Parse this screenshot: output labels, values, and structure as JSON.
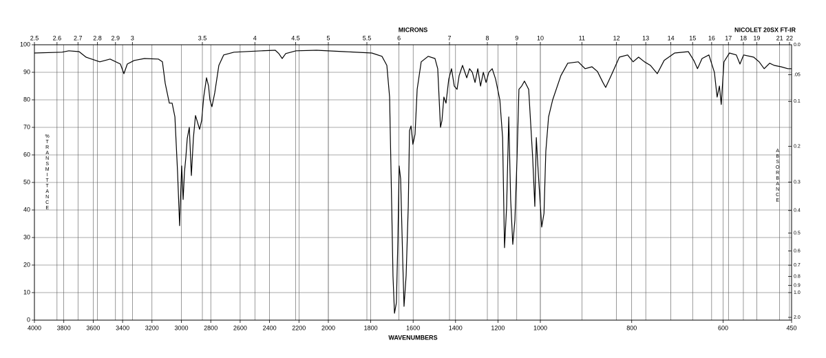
{
  "chart_data": {
    "type": "line",
    "title": "NICOLET 20SX FT-IR",
    "x_label": "WAVENUMBERS",
    "x2_label": "MICRONS",
    "y_label": "%TRANSMITTANCE",
    "y2_label": "ABSORBANCE",
    "color": "#000000",
    "grid": true,
    "xlim": [
      4000,
      450
    ],
    "xticks": [
      4000,
      3800,
      3600,
      3400,
      3200,
      3000,
      2800,
      2600,
      2400,
      2200,
      2000,
      1800,
      1600,
      1400,
      1200,
      1000,
      800,
      600,
      450
    ],
    "x2ticks": [
      2.5,
      2.6,
      2.7,
      2.8,
      2.9,
      3,
      3.5,
      4,
      4.5,
      5,
      5.5,
      6,
      7,
      8,
      9,
      10,
      11,
      12,
      13,
      14,
      15,
      16,
      17,
      18,
      19,
      21,
      22
    ],
    "ylim": [
      0,
      100
    ],
    "yticks": [
      0,
      10,
      20,
      30,
      40,
      50,
      60,
      70,
      80,
      90,
      100
    ],
    "y2ticks": [
      {
        "value": 0,
        "label": "0.0"
      },
      {
        "value": 0.05,
        "label": ".05"
      },
      0.1,
      0.2,
      0.3,
      0.4,
      0.5,
      0.6,
      0.7,
      0.8,
      0.9,
      {
        "value": 1,
        "label": "1.0"
      },
      {
        "value": 2,
        "label": "2.0"
      }
    ],
    "x": [
      4000,
      3813,
      3766,
      3696,
      3649,
      3555,
      3485,
      3415,
      3391,
      3368,
      3321,
      3251,
      3157,
      3129,
      3110,
      3082,
      3063,
      3044,
      3026,
      3012,
      2998,
      2988,
      2979,
      2970,
      2960,
      2946,
      2932,
      2918,
      2904,
      2890,
      2876,
      2862,
      2848,
      2829,
      2815,
      2806,
      2792,
      2773,
      2745,
      2712,
      2642,
      2454,
      2361,
      2337,
      2314,
      2290,
      2220,
      2080,
      1925,
      1795,
      1747,
      1724,
      1711,
      1701,
      1695,
      1688,
      1679,
      1672,
      1666,
      1659,
      1649,
      1643,
      1633,
      1623,
      1617,
      1610,
      1601,
      1591,
      1581,
      1562,
      1529,
      1497,
      1484,
      1471,
      1464,
      1455,
      1445,
      1432,
      1419,
      1406,
      1393,
      1383,
      1367,
      1347,
      1334,
      1321,
      1308,
      1295,
      1282,
      1269,
      1256,
      1243,
      1227,
      1211,
      1191,
      1178,
      1169,
      1159,
      1149,
      1140,
      1130,
      1120,
      1110,
      1101,
      1088,
      1075,
      1055,
      1036,
      1026,
      1019,
      1010,
      997,
      992,
      988,
      982,
      973,
      955,
      940,
      917,
      902,
      887,
      875,
      863,
      857,
      845,
      827,
      809,
      797,
      785,
      772,
      759,
      744,
      729,
      706,
      676,
      664,
      656,
      646,
      631,
      619,
      613,
      608,
      604,
      598,
      586,
      571,
      563,
      555,
      533,
      521,
      510,
      498,
      488,
      473,
      458,
      450
    ],
    "values": [
      97,
      97.3,
      97.8,
      97.5,
      95.5,
      93.8,
      94.8,
      93,
      89.5,
      93,
      94.3,
      95,
      94.8,
      93.8,
      86,
      78.8,
      78.8,
      73.8,
      53.8,
      34.3,
      56,
      43.8,
      53.8,
      58.8,
      66,
      70,
      52.5,
      66.3,
      74.3,
      71.8,
      69.3,
      72.5,
      81,
      88,
      85,
      80,
      77.5,
      82.5,
      92.5,
      96.3,
      97.3,
      97.8,
      98,
      96.8,
      95,
      96.8,
      97.8,
      98,
      97.5,
      97,
      95.8,
      92.5,
      81,
      41,
      16,
      2.5,
      6.3,
      28.8,
      56,
      51.3,
      21.3,
      5,
      16.3,
      41.3,
      68.8,
      70.5,
      63.8,
      67.5,
      83.8,
      93.8,
      95.8,
      95,
      91.3,
      70,
      72.5,
      81,
      78.8,
      87.5,
      91.3,
      85,
      83.8,
      88.8,
      92.5,
      88,
      91.3,
      90,
      86.3,
      91.3,
      85,
      90,
      86.3,
      90,
      91.3,
      87.5,
      80,
      66.3,
      26.3,
      41.3,
      73.8,
      43.8,
      27.5,
      36.3,
      58.8,
      83.8,
      85,
      86.8,
      83.8,
      58.8,
      41.3,
      66.3,
      53.8,
      33.8,
      38.8,
      61.3,
      73.8,
      80,
      88.8,
      93.3,
      93.8,
      91.3,
      92,
      90.3,
      86.3,
      84.5,
      88.8,
      95.5,
      96.3,
      93.8,
      95.5,
      93.8,
      92.5,
      89.5,
      94.3,
      97,
      97.5,
      94.3,
      91.3,
      95,
      96.3,
      90,
      81,
      85,
      78.3,
      93.8,
      97,
      96.3,
      93,
      96.3,
      95.5,
      93.8,
      91.3,
      93.3,
      92.5,
      92,
      91.3,
      91.3
    ]
  }
}
